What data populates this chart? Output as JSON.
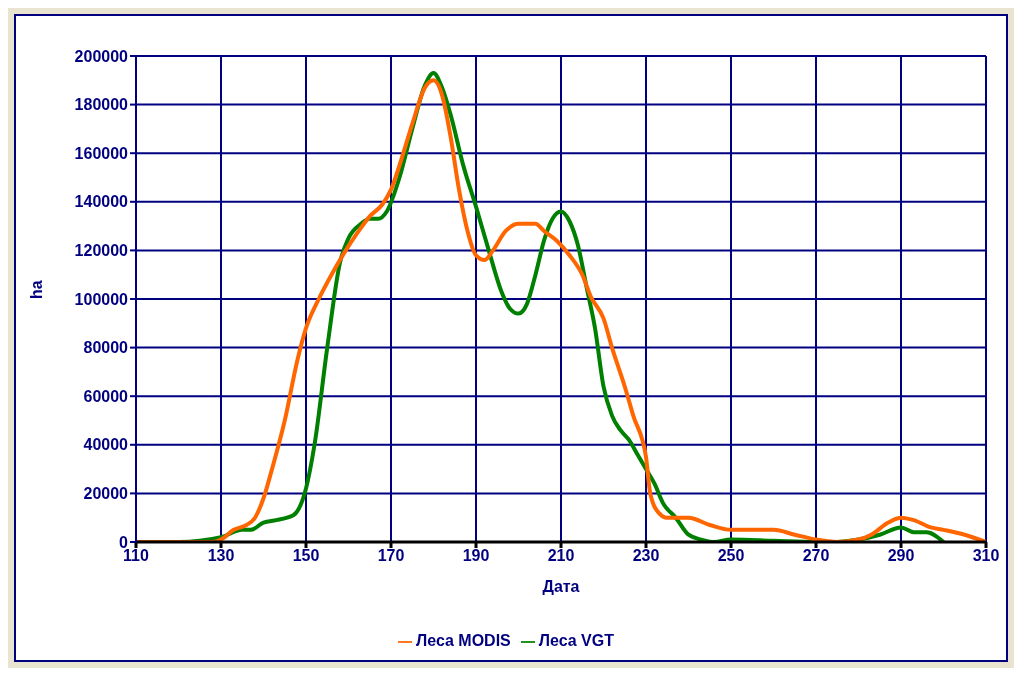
{
  "chart_data": {
    "type": "line",
    "xlabel": "Дата",
    "ylabel": "ha",
    "xlim": [
      110,
      310
    ],
    "xticks": [
      110,
      130,
      150,
      170,
      190,
      210,
      230,
      250,
      270,
      290,
      310
    ],
    "ylim": [
      0,
      200000
    ],
    "yticks": [
      0,
      20000,
      40000,
      60000,
      80000,
      100000,
      120000,
      140000,
      160000,
      180000,
      200000
    ],
    "grid": true,
    "legend": "bottom",
    "line_style": "solid",
    "series": [
      {
        "name": "Леса VGT",
        "color": "#008000",
        "x": [
          110,
          120,
          130,
          135,
          137,
          140,
          143,
          147,
          150,
          152,
          155,
          158,
          160,
          163,
          165,
          167,
          169,
          172,
          175,
          178,
          180,
          182,
          184,
          187,
          190,
          193,
          196,
          198,
          200,
          202,
          204,
          206,
          208,
          210,
          212,
          214,
          216,
          218,
          220,
          222,
          224,
          226,
          228,
          230,
          232,
          234,
          237,
          240,
          243,
          246,
          250,
          260,
          270,
          275,
          280,
          285,
          290,
          293,
          296,
          300
        ],
        "values": [
          0,
          0,
          2000,
          5000,
          5000,
          8000,
          9000,
          11000,
          22000,
          40000,
          80000,
          115000,
          125000,
          131000,
          133000,
          133000,
          136000,
          150000,
          170000,
          188000,
          193000,
          187000,
          176000,
          155000,
          138000,
          120000,
          103000,
          96000,
          94000,
          98000,
          110000,
          124000,
          133000,
          136000,
          132000,
          122000,
          105000,
          88000,
          64000,
          52000,
          46000,
          42000,
          36000,
          30000,
          24000,
          16000,
          10000,
          3000,
          1000,
          0,
          1000,
          500,
          0,
          0,
          1000,
          3000,
          6000,
          4000,
          4000,
          0
        ]
      },
      {
        "name": "Леса MODIS",
        "color": "#ff6600",
        "x": [
          110,
          120,
          128,
          130,
          133,
          136,
          138,
          140,
          142,
          145,
          148,
          150,
          153,
          156,
          159,
          162,
          165,
          168,
          170,
          172,
          175,
          178,
          180,
          182,
          184,
          186,
          188,
          190,
          192,
          194,
          197,
          200,
          204,
          206,
          209,
          212,
          215,
          217,
          220,
          222,
          225,
          227,
          230,
          231,
          233,
          235,
          240,
          245,
          250,
          260,
          265,
          270,
          275,
          280,
          283,
          287,
          290,
          293,
          297,
          300,
          305,
          310
        ],
        "values": [
          0,
          0,
          0,
          1000,
          5000,
          7000,
          10000,
          18000,
          30000,
          50000,
          75000,
          88000,
          100000,
          110000,
          119000,
          127000,
          134000,
          139000,
          145000,
          155000,
          172000,
          187000,
          190000,
          184000,
          167000,
          145000,
          128000,
          118000,
          116000,
          120000,
          128000,
          131000,
          131000,
          128000,
          124000,
          118000,
          110000,
          101000,
          92000,
          80000,
          64000,
          52000,
          35000,
          20000,
          12000,
          10000,
          10000,
          7000,
          5000,
          5000,
          3000,
          1000,
          0,
          1000,
          3000,
          8000,
          10000,
          9000,
          6000,
          5000,
          3000,
          0
        ]
      }
    ]
  }
}
